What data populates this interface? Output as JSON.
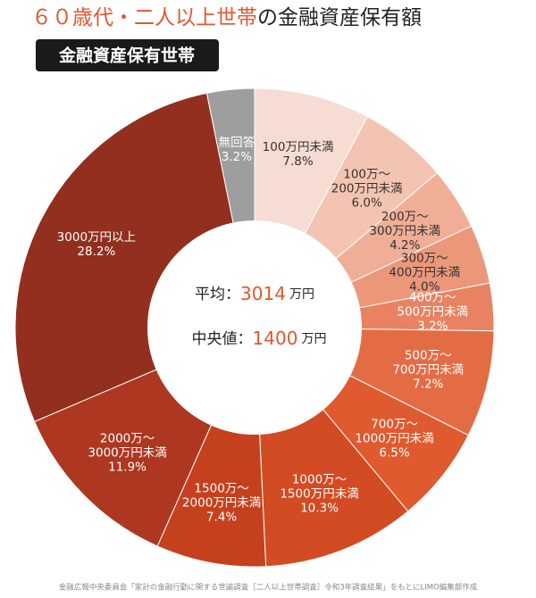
{
  "chart_data": {
    "type": "donut",
    "title_highlight": "６０歳代・二人以上世帯",
    "title": "の金融資産保有額",
    "badge": "金融資産保有世帯",
    "categories": [
      [
        "100万円未満"
      ],
      [
        "100万～",
        "200万円未満"
      ],
      [
        "200万～",
        "300万円未満"
      ],
      [
        "300万～",
        "400万円未満"
      ],
      [
        "400万～",
        "500万円未満"
      ],
      [
        "500万～",
        "700万円未満"
      ],
      [
        "700万～",
        "1000万円未満"
      ],
      [
        "1000万～",
        "1500万円未満"
      ],
      [
        "1500万～",
        "2000万円未満"
      ],
      [
        "2000万～",
        "3000万円未満"
      ],
      [
        "3000万円以上"
      ],
      [
        "無回答"
      ]
    ],
    "values": [
      7.8,
      6.0,
      4.2,
      4.0,
      3.2,
      7.2,
      6.5,
      10.3,
      7.4,
      11.9,
      28.2,
      3.2
    ],
    "value_labels": [
      "7.8%",
      "6.0%",
      "4.2%",
      "4.0%",
      "3.2%",
      "7.2%",
      "6.5%",
      "10.3%",
      "7.4%",
      "11.9%",
      "28.2%",
      "3.2%"
    ],
    "colors": [
      "#f7dcd3",
      "#f4c4b2",
      "#f0ae96",
      "#ec977a",
      "#e88260",
      "#e46c45",
      "#df5a2f",
      "#d34b22",
      "#c5411e",
      "#ad3720",
      "#922f1f",
      "#9e9e9e"
    ],
    "center": {
      "mean_label": "平均：",
      "mean_value": "3014",
      "mean_unit": "万円",
      "median_label": "中央値：",
      "median_value": "1400",
      "median_unit": "万円"
    },
    "source": "金融広報中央委員会「家計の金融行動に関する世論調査［二人以上世帯調査］令和3年調査結果」をもとにLIMO編集部作成"
  }
}
